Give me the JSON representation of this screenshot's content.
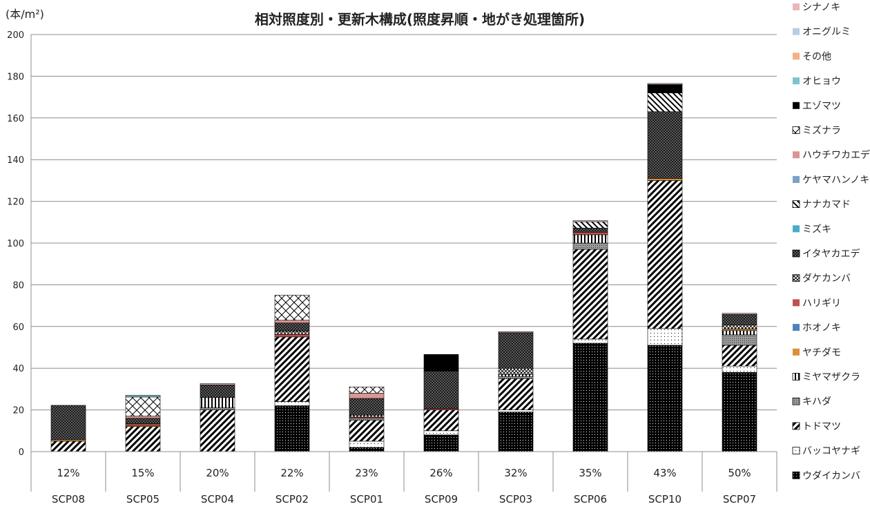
{
  "chart_data": {
    "type": "bar",
    "stacked": true,
    "title": "相対照度別・更新木構成(照度昇順・地がき処理箇所)",
    "unit_label": "(本/m²)",
    "ylim": [
      0,
      200
    ],
    "ytick_step": 20,
    "grid": true,
    "legend_position": "right",
    "categories": [
      "SCP08",
      "SCP05",
      "SCP04",
      "SCP02",
      "SCP01",
      "SCP09",
      "SCP03",
      "SCP06",
      "SCP10",
      "SCP07"
    ],
    "illuminance": [
      "12%",
      "15%",
      "20%",
      "22%",
      "23%",
      "26%",
      "32%",
      "35%",
      "43%",
      "50%"
    ],
    "series": [
      {
        "name": "ウダイカンバ",
        "color": "#000000",
        "pattern": "black-dots",
        "values": [
          0,
          0,
          0,
          22,
          2,
          8,
          19,
          52,
          51,
          38
        ]
      },
      {
        "name": "バッコヤナギ",
        "color": "#ffffff",
        "pattern": "white",
        "values": [
          0,
          0,
          0,
          2,
          3,
          2,
          1,
          2,
          8,
          3
        ]
      },
      {
        "name": "トドマツ",
        "color": "#ffffff",
        "pattern": "diag",
        "values": [
          5,
          12,
          20,
          31,
          10,
          10,
          15,
          43,
          71,
          10
        ]
      },
      {
        "name": "キハダ",
        "color": "#8c8c8c",
        "pattern": "gray",
        "values": [
          0,
          0,
          1,
          0,
          1,
          0,
          1,
          3,
          0,
          5
        ]
      },
      {
        "name": "ミヤマザクラ",
        "color": "#ffffff",
        "pattern": "vlines",
        "values": [
          0,
          0,
          5,
          0,
          0,
          0,
          1,
          4,
          0,
          2
        ]
      },
      {
        "name": "ヤチダモ",
        "color": "#d98f3c",
        "pattern": "solid",
        "values": [
          0.7,
          0.6,
          0,
          0,
          0,
          0,
          0,
          0,
          1,
          0.8
        ]
      },
      {
        "name": "ホオノキ",
        "color": "#4f81bd",
        "pattern": "solid",
        "values": [
          0,
          0,
          0,
          0,
          0,
          0,
          0,
          0,
          0,
          0
        ]
      },
      {
        "name": "ハリギリ",
        "color": "#c0504d",
        "pattern": "solid",
        "values": [
          0,
          0.8,
          0,
          1.2,
          0.5,
          0.6,
          0,
          1.2,
          0,
          0
        ]
      },
      {
        "name": "ダケカンバ",
        "color": "#ffffff",
        "pattern": "crosshatch",
        "values": [
          0,
          0,
          0,
          1.5,
          1,
          0,
          3,
          0,
          0,
          2
        ]
      },
      {
        "name": "イタヤカエデ",
        "color": "#5a5a5a",
        "pattern": "dark-crosshatch",
        "values": [
          16.5,
          2.6,
          6,
          4,
          8,
          18,
          17,
          2,
          32,
          5
        ]
      },
      {
        "name": "ミズキ",
        "color": "#4bacc6",
        "pattern": "solid",
        "values": [
          0,
          0,
          0,
          0,
          0,
          0,
          0,
          0,
          0,
          0
        ]
      },
      {
        "name": "ナナカマド",
        "color": "#ffffff",
        "pattern": "rdiag",
        "values": [
          0,
          0,
          0,
          0,
          0,
          0,
          0,
          3,
          9,
          0
        ]
      },
      {
        "name": "ケヤマハンノキ",
        "color": "#7b9fc9",
        "pattern": "solid",
        "values": [
          0,
          0,
          0,
          0,
          0,
          0,
          0,
          0,
          0,
          0
        ]
      },
      {
        "name": "ハウチワカエデ",
        "color": "#d99694",
        "pattern": "solid",
        "values": [
          0,
          1,
          0,
          1.3,
          2.5,
          0,
          0,
          0,
          0,
          0
        ]
      },
      {
        "name": "ミズナラ",
        "color": "#ffffff",
        "pattern": "big-crosshatch",
        "values": [
          0,
          9.2,
          0,
          12,
          3,
          0,
          0,
          0,
          0,
          0
        ]
      },
      {
        "name": "エゾマツ",
        "color": "#000000",
        "pattern": "solid",
        "values": [
          0,
          0,
          0,
          0,
          0,
          8,
          0,
          0,
          4,
          0
        ]
      },
      {
        "name": "オヒョウ",
        "color": "#7fc4cc",
        "pattern": "solid",
        "values": [
          0,
          0.8,
          0,
          0,
          0,
          0,
          0,
          0,
          0,
          0
        ]
      },
      {
        "name": "その他",
        "color": "#f4b183",
        "pattern": "solid",
        "values": [
          0,
          0,
          0,
          0,
          0,
          0,
          0,
          0,
          0,
          0
        ]
      },
      {
        "name": "オニグルミ",
        "color": "#b9cde5",
        "pattern": "solid",
        "values": [
          0,
          0,
          0,
          0,
          0,
          0,
          0,
          0,
          0,
          0
        ]
      },
      {
        "name": "シナノキ",
        "color": "#e6b9b8",
        "pattern": "solid",
        "values": [
          0,
          0,
          0.6,
          0,
          0,
          0,
          0.5,
          0.5,
          0.5,
          0.5
        ]
      }
    ]
  }
}
